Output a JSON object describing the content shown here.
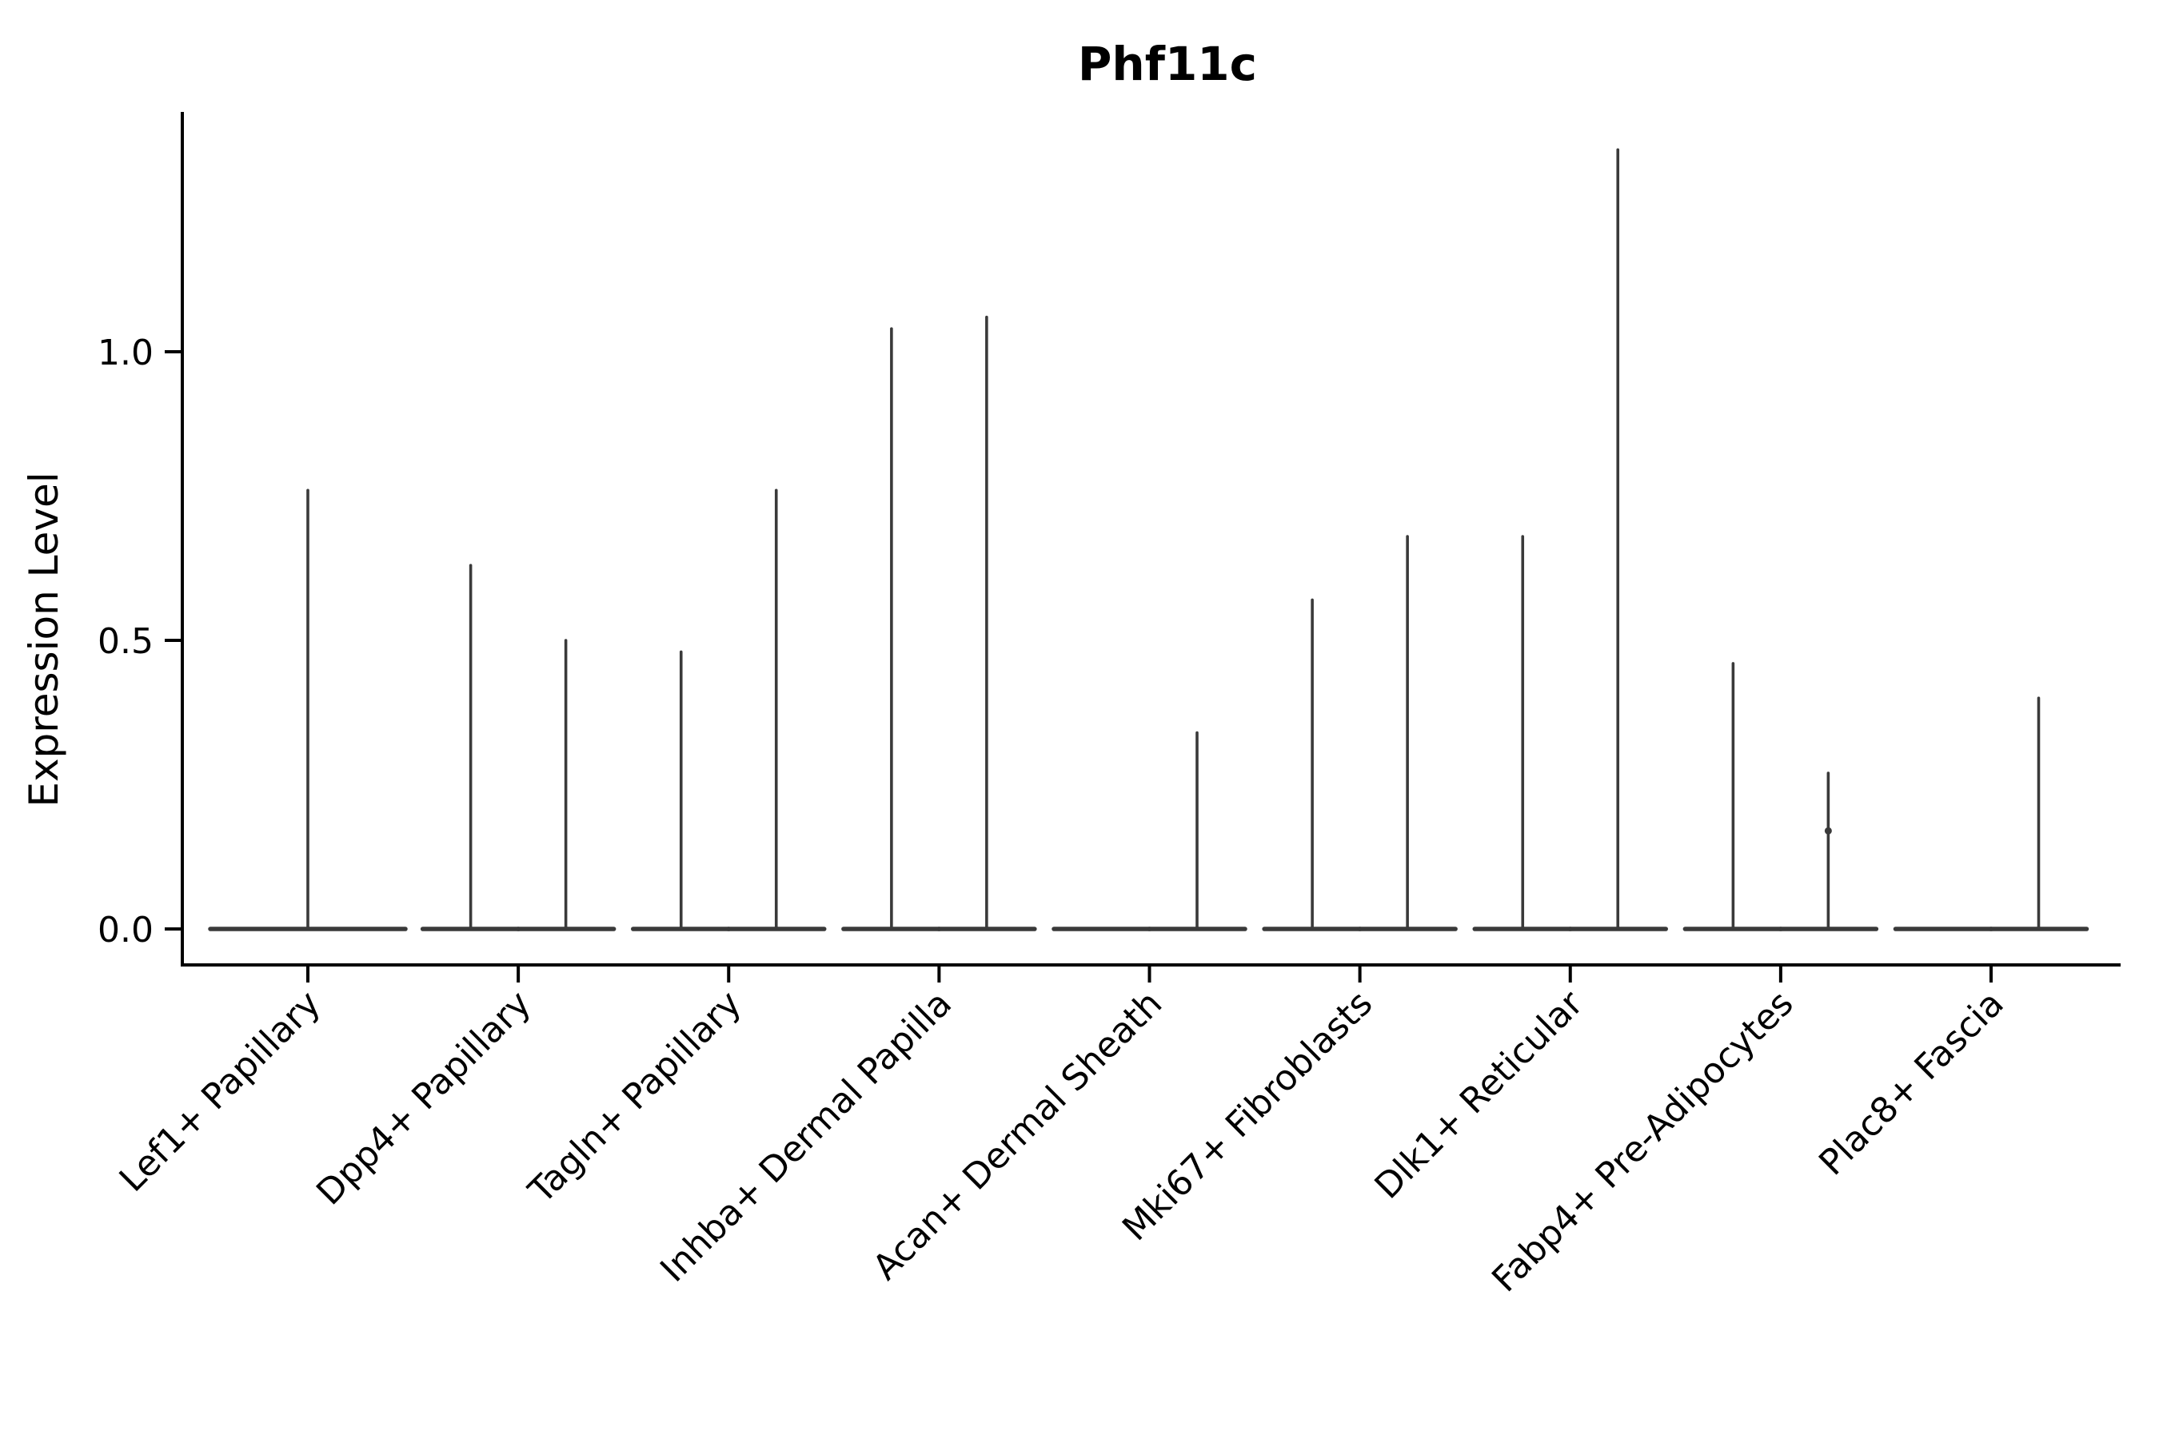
{
  "title": "Phf11c",
  "ylabel": "Expression Level",
  "style": {
    "violin_color": "#3A3A3A",
    "axis_color": "#000000",
    "text_color": "#000000",
    "background": "#FFFFFF"
  },
  "chart_data": {
    "type": "violin",
    "title": "Phf11c",
    "xlabel": "",
    "ylabel": "Expression Level",
    "ylim": [
      -0.06,
      1.42
    ],
    "yticks": [
      0.0,
      0.5,
      1.0
    ],
    "ytick_labels": [
      "0.0",
      "0.5",
      "1.0"
    ],
    "grid": false,
    "legend": null,
    "description": "Violin plot of gene expression; distributions are concentrated at 0 so each violin renders as a flat baseline at 0 with a thin central spike up to the maximum expression value. Categories with two violins show a split pair side by side.",
    "categories": [
      "Lef1+ Papillary",
      "Dpp4+ Papillary",
      "Tagln+ Papillary",
      "Inhba+ Dermal Papilla",
      "Acan+ Dermal Sheath",
      "Mki67+ Fibroblasts",
      "Dlk1+ Reticular",
      "Fabp4+ Pre-Adipocytes",
      "Plac8+ Fascia"
    ],
    "groups": [
      {
        "category": "Lef1+ Papillary",
        "violins": [
          {
            "position": "center",
            "max_expression": 0.76
          }
        ]
      },
      {
        "category": "Dpp4+ Papillary",
        "violins": [
          {
            "position": "left",
            "max_expression": 0.63
          },
          {
            "position": "right",
            "max_expression": 0.5
          }
        ]
      },
      {
        "category": "Tagln+ Papillary",
        "violins": [
          {
            "position": "left",
            "max_expression": 0.48
          },
          {
            "position": "right",
            "max_expression": 0.76
          }
        ]
      },
      {
        "category": "Inhba+ Dermal Papilla",
        "violins": [
          {
            "position": "left",
            "max_expression": 1.04
          },
          {
            "position": "right",
            "max_expression": 1.06
          }
        ]
      },
      {
        "category": "Acan+ Dermal Sheath",
        "violins": [
          {
            "position": "left",
            "max_expression": 0.0
          },
          {
            "position": "right",
            "max_expression": 0.34
          }
        ]
      },
      {
        "category": "Mki67+ Fibroblasts",
        "violins": [
          {
            "position": "left",
            "max_expression": 0.57
          },
          {
            "position": "right",
            "max_expression": 0.68
          }
        ]
      },
      {
        "category": "Dlk1+ Reticular",
        "violins": [
          {
            "position": "left",
            "max_expression": 0.68
          },
          {
            "position": "right",
            "max_expression": 1.35
          }
        ]
      },
      {
        "category": "Fabp4+ Pre-Adipocytes",
        "violins": [
          {
            "position": "left",
            "max_expression": 0.46
          },
          {
            "position": "right",
            "max_expression": 0.27,
            "bulge_at": 0.17
          }
        ]
      },
      {
        "category": "Plac8+ Fascia",
        "violins": [
          {
            "position": "left",
            "max_expression": 0.0
          },
          {
            "position": "right",
            "max_expression": 0.4
          }
        ]
      }
    ]
  }
}
